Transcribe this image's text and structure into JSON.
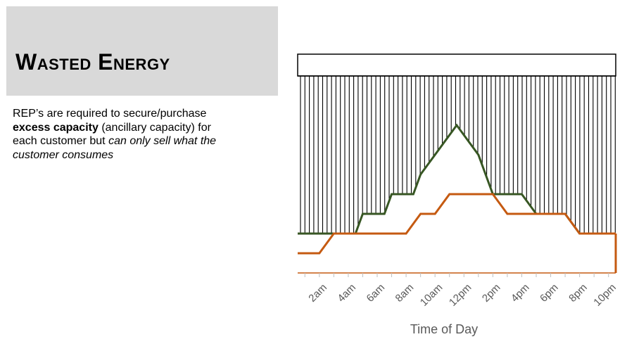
{
  "slide": {
    "title": "Wasted Energy",
    "body": {
      "p1": "REP’s are required to secure/purchase ",
      "b1": "excess capacity",
      "p2": " (ancillary capacity) for each customer but ",
      "i1": "can only sell what the customer consumes"
    }
  },
  "chart_data": {
    "type": "line",
    "xlabel": "Time of Day",
    "ylabel": "",
    "tick_labels": [
      "2am",
      "4am",
      "6am",
      "8am",
      "10am",
      "12pm",
      "2pm",
      "4pm",
      "6pm",
      "8pm",
      "10pm"
    ],
    "x_range": [
      0.5,
      22.5
    ],
    "y_range": [
      0,
      10
    ],
    "capacity_level": 10,
    "series": [
      {
        "color": "#375623",
        "x": [
          0.5,
          2.5,
          3,
          4.5,
          5,
          6.5,
          7,
          8.5,
          9,
          10,
          11,
          11.5,
          12,
          13,
          14,
          14.5,
          15,
          16,
          17,
          18,
          18.5,
          19,
          20,
          21,
          22,
          22.5
        ],
        "y": [
          2,
          2,
          2,
          2,
          3,
          3,
          4,
          4,
          5,
          6,
          7,
          7.5,
          7,
          6,
          4,
          4,
          4,
          4,
          3,
          3,
          3,
          3,
          2,
          2,
          2,
          2
        ]
      },
      {
        "color": "#c55a11",
        "x": [
          0.5,
          2,
          3,
          4,
          5,
          6,
          7,
          8,
          9,
          10,
          11,
          12,
          13,
          14,
          15,
          16,
          17,
          18,
          19,
          20,
          21,
          22,
          22.5
        ],
        "y": [
          1,
          1,
          2,
          2,
          2,
          2,
          2,
          2,
          3,
          3,
          4,
          4,
          4,
          4,
          3,
          3,
          3,
          3,
          3,
          2,
          2,
          2,
          2
        ]
      }
    ]
  }
}
